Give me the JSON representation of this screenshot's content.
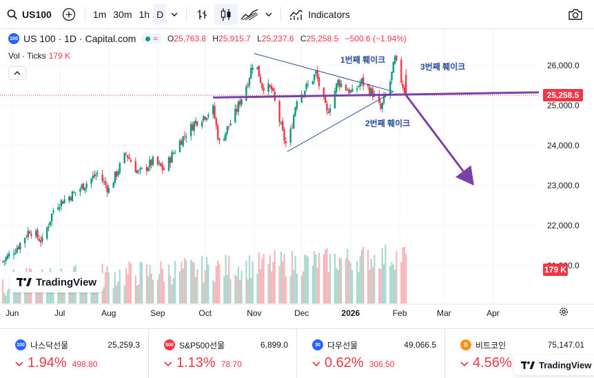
{
  "toolbar": {
    "symbol": "US100",
    "timeframes": [
      "1m",
      "30m",
      "1h",
      "D"
    ],
    "active_timeframe": "D",
    "indicators_label": "Indicators",
    "search_icon": "search-icon",
    "add_icon": "plus-circle-icon",
    "camera_icon": "camera-icon"
  },
  "legend": {
    "badge": "100",
    "title": "US 100 · 1D · Capital.com",
    "open_label": "O",
    "open": "25,763.8",
    "high_label": "H",
    "high": "25,915.7",
    "low_label": "L",
    "low": "25,237.6",
    "close_label": "C",
    "close": "25,258.5",
    "change": "−500.6 (−1.94%)"
  },
  "volume_legend": {
    "label": "Vol · Ticks",
    "value": "179 K"
  },
  "price_axis": {
    "ticks": [
      "26,000.0",
      "25,000.0",
      "24,000.0",
      "23,000.0",
      "22,000.0",
      "21,000.0"
    ],
    "last_price": "25,258.5",
    "volume_tag": "179 K"
  },
  "time_axis": [
    "Jun",
    "Jul",
    "Aug",
    "Sep",
    "Oct",
    "Nov",
    "Dec",
    "2026",
    "Feb",
    "Mar",
    "Apr"
  ],
  "annotations": {
    "shakeout1": "1번째 훼이크",
    "shakeout2": "2번째 훼이크",
    "shakeout3": "3번째 훼이크"
  },
  "watermark": "TradingView",
  "colors": {
    "up": "#089981",
    "down": "#f23645",
    "vol_up": "#a8d8ce",
    "vol_down": "#f7b5b9",
    "purple": "#7b3fa8",
    "trendline": "#2f4f9e",
    "annotation_text": "#2a4b9b"
  },
  "chart_data": {
    "type": "candlestick",
    "ylim": [
      20800,
      26600
    ],
    "x_start": "2025-05-26",
    "x_end": "2026-04-30",
    "waypoints": [
      [
        "2025-05-26",
        21100
      ],
      [
        "2025-06-05",
        21500
      ],
      [
        "2025-06-12",
        21900
      ],
      [
        "2025-06-20",
        21600
      ],
      [
        "2025-06-28",
        22500
      ],
      [
        "2025-07-10",
        22800
      ],
      [
        "2025-07-25",
        23300
      ],
      [
        "2025-08-01",
        22900
      ],
      [
        "2025-08-12",
        23800
      ],
      [
        "2025-08-20",
        23300
      ],
      [
        "2025-08-29",
        23600
      ],
      [
        "2025-09-05",
        23400
      ],
      [
        "2025-09-15",
        24100
      ],
      [
        "2025-09-25",
        24600
      ],
      [
        "2025-10-06",
        24900
      ],
      [
        "2025-10-10",
        24050
      ],
      [
        "2025-10-20",
        24800
      ],
      [
        "2025-10-28",
        25600
      ],
      [
        "2025-11-01",
        26200
      ],
      [
        "2025-11-06",
        25500
      ],
      [
        "2025-11-12",
        25400
      ],
      [
        "2025-11-19",
        24300
      ],
      [
        "2025-11-22",
        23900
      ],
      [
        "2025-11-28",
        25200
      ],
      [
        "2025-12-05",
        25500
      ],
      [
        "2025-12-10",
        25800
      ],
      [
        "2025-12-17",
        24800
      ],
      [
        "2025-12-24",
        25600
      ],
      [
        "2026-01-02",
        25300
      ],
      [
        "2026-01-08",
        25600
      ],
      [
        "2026-01-15",
        25300
      ],
      [
        "2026-01-20",
        24900
      ],
      [
        "2026-01-26",
        25600
      ],
      [
        "2026-01-29",
        26150
      ],
      [
        "2026-02-03",
        25500
      ],
      [
        "2026-02-05",
        25258.5
      ]
    ],
    "last_bar": {
      "open": 25763.8,
      "high": 25915.7,
      "low": 25237.6,
      "close": 25258.5
    },
    "support_line": [
      [
        "2025-10-06",
        25200
      ],
      [
        "2026-04-30",
        25330
      ]
    ],
    "upper_trendline": [
      [
        "2025-11-01",
        26300
      ],
      [
        "2026-01-28",
        25350
      ]
    ],
    "lower_trendline": [
      [
        "2025-11-22",
        23850
      ],
      [
        "2026-01-28",
        25350
      ]
    ],
    "projection_arrow": [
      [
        "2026-02-05",
        25258.5
      ],
      [
        "2026-03-20",
        23000
      ]
    ]
  },
  "tickers": [
    {
      "badge": "100",
      "badge_color": "#2962ff",
      "name": "나스닥선물",
      "price": "25,259.3",
      "pct": "1.94%",
      "chg": "498.80"
    },
    {
      "badge": "500",
      "badge_color": "#f23645",
      "name": "S&P500선물",
      "price": "6,899.0",
      "pct": "1.13%",
      "chg": "78.70"
    },
    {
      "badge": "30",
      "badge_color": "#2962ff",
      "name": "다우선물",
      "price": "49,066.5",
      "pct": "0.62%",
      "chg": "306.50"
    },
    {
      "badge": "₿",
      "badge_color": "#f7931a",
      "name": "비트코인",
      "price": "75,147.01",
      "pct": "4.56%",
      "chg": ""
    }
  ]
}
